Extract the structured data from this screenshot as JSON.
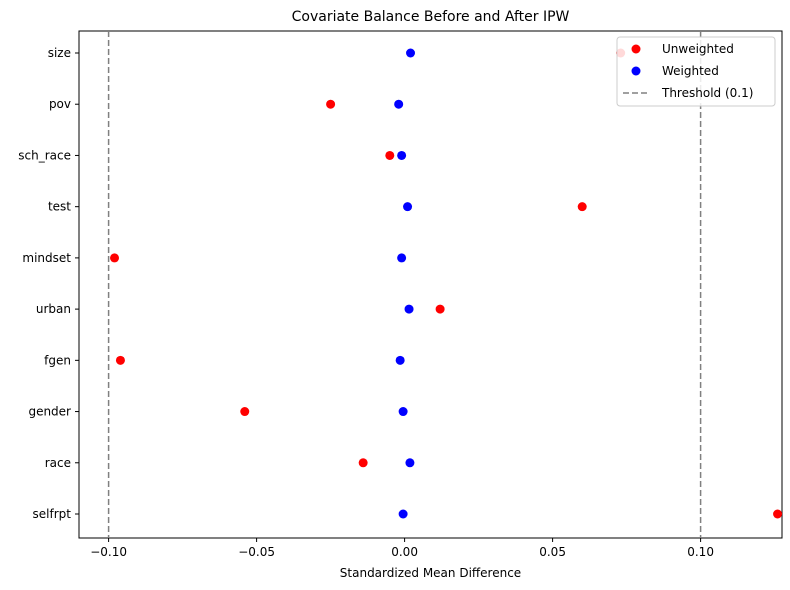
{
  "chart_data": {
    "type": "scatter",
    "title": "Covariate Balance Before and After IPW",
    "xlabel": "Standardized Mean Difference",
    "ylabel": "",
    "xlim": [
      -0.11,
      0.1275
    ],
    "xticks": [
      -0.1,
      -0.05,
      0.0,
      0.05,
      0.1
    ],
    "xtick_labels": [
      "−0.10",
      "−0.05",
      "0.00",
      "0.05",
      "0.10"
    ],
    "categories": [
      "size",
      "pov",
      "sch_race",
      "test",
      "mindset",
      "urban",
      "fgen",
      "gender",
      "race",
      "selfrpt"
    ],
    "series": [
      {
        "name": "Unweighted",
        "color": "#ff0000",
        "values": [
          0.073,
          -0.025,
          -0.005,
          0.06,
          -0.098,
          0.012,
          -0.096,
          -0.054,
          -0.014,
          0.126
        ]
      },
      {
        "name": "Weighted",
        "color": "#0000ff",
        "values": [
          0.002,
          -0.002,
          -0.001,
          0.001,
          -0.001,
          0.0015,
          -0.0015,
          -0.0005,
          0.0018,
          -0.0005
        ]
      }
    ],
    "reference_lines": [
      {
        "x": -0.1,
        "style": "dashed",
        "color": "#808080"
      },
      {
        "x": 0.1,
        "style": "dashed",
        "color": "#808080"
      }
    ],
    "threshold_label": "Threshold (0.1)",
    "grid": false,
    "legend_position": "top-right"
  }
}
